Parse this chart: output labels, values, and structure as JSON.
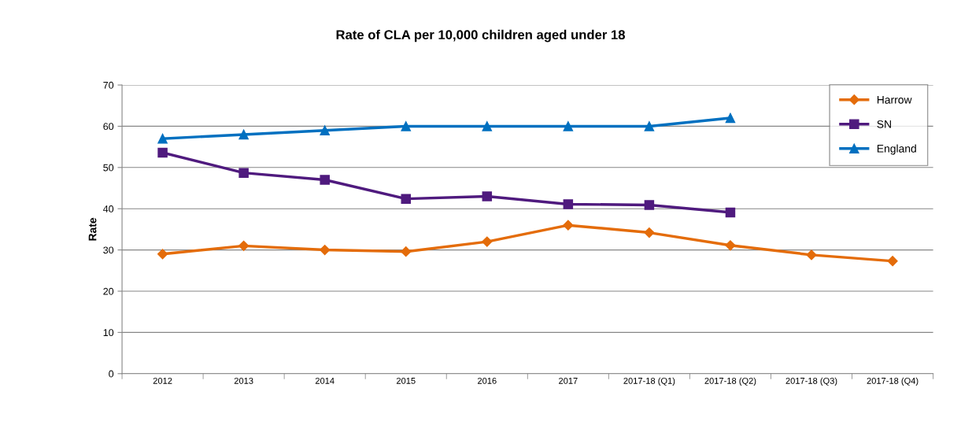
{
  "chart_data": {
    "type": "line",
    "title": "Rate of CLA per 10,000 children aged under 18",
    "ylabel": "Rate",
    "categories": [
      "2012",
      "2013",
      "2014",
      "2015",
      "2016",
      "2017",
      "2017-18 (Q1)",
      "2017-18 (Q2)",
      "2017-18 (Q3)",
      "2017-18 (Q4)"
    ],
    "series": [
      {
        "name": "Harrow",
        "color": "#e46c0a",
        "marker": "diamond",
        "values": [
          29.0,
          31.0,
          30.0,
          29.6,
          32.0,
          36.0,
          34.2,
          31.1,
          28.8,
          27.3
        ]
      },
      {
        "name": "SN",
        "color": "#4f1a7e",
        "marker": "square",
        "values": [
          53.6,
          48.7,
          47.0,
          42.4,
          43.0,
          41.1,
          40.9,
          39.1,
          null,
          null
        ]
      },
      {
        "name": "England",
        "color": "#0070c0",
        "marker": "triangle",
        "values": [
          57,
          58,
          59,
          60,
          60,
          60,
          60,
          62,
          null,
          null
        ]
      }
    ],
    "ylim": [
      0,
      70
    ],
    "yticks": [
      0,
      10,
      20,
      30,
      40,
      50,
      60,
      70
    ],
    "grid": "y",
    "legend": "top right",
    "line_style": "solid"
  }
}
